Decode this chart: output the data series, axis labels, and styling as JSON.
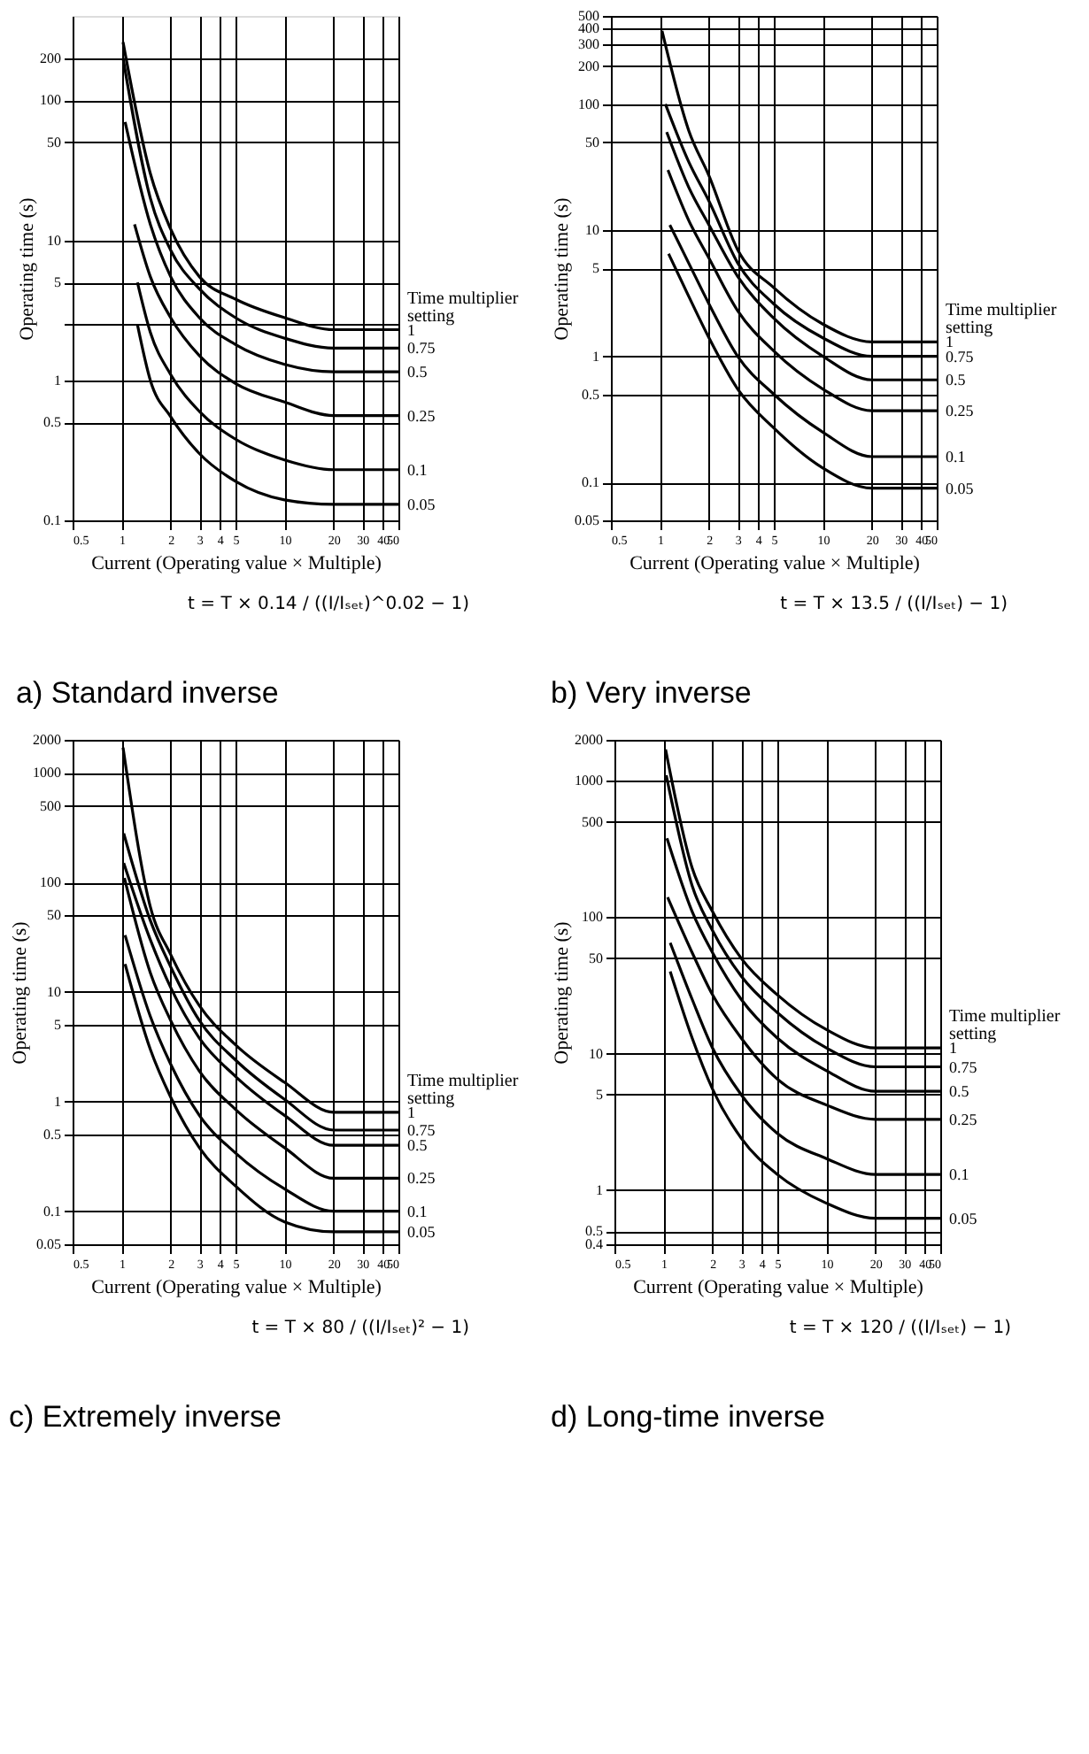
{
  "chart_data": [
    {
      "type": "line",
      "title": "a) Standard inverse",
      "xlabel": "Current (Operating value × Multiple)",
      "ylabel": "Operating time (s)",
      "legend_title": "Time multiplier setting",
      "annotations": [
        "t = T × 0.14 / ((I/Iₛₑₜ)^0.02 − 1)"
      ],
      "xlim": [
        0.5,
        50
      ],
      "ylim": [
        0.1,
        400
      ],
      "xticks": [
        0.5,
        1,
        2,
        3,
        4,
        5,
        10,
        20,
        30,
        40,
        50
      ],
      "yticks": [
        0.1,
        0.5,
        1,
        {
          "value": 2.5,
          "label": null
        },
        5,
        10,
        50,
        100,
        200
      ],
      "legend": "right",
      "log": "xy",
      "grid": true,
      "marker": "none",
      "line_style": "solid",
      "series": [
        {
          "name": "1",
          "color": "#000000",
          "x": [
            1.02,
            1.5,
            2,
            3,
            5,
            10,
            20,
            50
          ],
          "values": [
            260,
            30,
            12,
            5.5,
            3.8,
            2.8,
            2.3,
            2.3
          ]
        },
        {
          "name": "0.75",
          "color": "#000000",
          "x": [
            1.02,
            1.5,
            2,
            3,
            5,
            10,
            20,
            50
          ],
          "values": [
            200,
            20,
            8.5,
            4.5,
            2.8,
            2.0,
            1.7,
            1.7
          ]
        },
        {
          "name": "0.5",
          "color": "#000000",
          "x": [
            1.05,
            1.5,
            2,
            3,
            5,
            10,
            20,
            50
          ],
          "values": [
            70,
            13,
            5.5,
            2.8,
            1.8,
            1.3,
            1.15,
            1.15
          ]
        },
        {
          "name": "0.25",
          "color": "#000000",
          "x": [
            1.2,
            1.5,
            2,
            3,
            5,
            10,
            20,
            50
          ],
          "values": [
            13,
            5.5,
            2.8,
            1.5,
            0.95,
            0.7,
            0.56,
            0.56
          ]
        },
        {
          "name": "0.1",
          "color": "#000000",
          "x": [
            1.25,
            1.5,
            2,
            3,
            5,
            10,
            20,
            50
          ],
          "values": [
            5,
            2.2,
            1.1,
            0.6,
            0.38,
            0.27,
            0.23,
            0.23
          ]
        },
        {
          "name": "0.05",
          "color": "#000000",
          "x": [
            1.25,
            1.5,
            2,
            3,
            5,
            10,
            20,
            50
          ],
          "values": [
            2.5,
            1.0,
            0.55,
            0.3,
            0.19,
            0.14,
            0.13,
            0.13
          ]
        }
      ]
    },
    {
      "type": "line",
      "title": "b) Very inverse",
      "xlabel": "Current (Operating value × Multiple)",
      "ylabel": "Operating time (s)",
      "legend_title": "Time multiplier setting",
      "annotations": [
        "t = T × 13.5 / ((I/Iₛₑₜ) − 1)"
      ],
      "xlim": [
        0.5,
        50
      ],
      "ylim": [
        0.05,
        500
      ],
      "xticks": [
        0.5,
        1,
        2,
        3,
        4,
        5,
        10,
        20,
        30,
        40,
        50
      ],
      "yticks": [
        0.05,
        0.1,
        0.5,
        1,
        5,
        10,
        50,
        100,
        200,
        300,
        400,
        500
      ],
      "legend": "right",
      "log": "xy",
      "grid": true,
      "marker": "none",
      "line_style": "solid",
      "series": [
        {
          "name": "1",
          "color": "#000000",
          "x": [
            1.03,
            1.5,
            2,
            3,
            5,
            10,
            20,
            50
          ],
          "values": [
            380,
            62,
            27,
            7,
            3.5,
            1.8,
            1.3,
            1.3
          ]
        },
        {
          "name": "0.75",
          "color": "#000000",
          "x": [
            1.08,
            1.5,
            2,
            3,
            5,
            10,
            20,
            50
          ],
          "values": [
            100,
            35,
            17,
            5.5,
            2.6,
            1.4,
            1.0,
            1.0
          ]
        },
        {
          "name": "0.5",
          "color": "#000000",
          "x": [
            1.1,
            1.5,
            2,
            3,
            5,
            10,
            20,
            50
          ],
          "values": [
            60,
            22,
            11,
            4.3,
            2.0,
            1.0,
            0.65,
            0.65
          ]
        },
        {
          "name": "0.25",
          "color": "#000000",
          "x": [
            1.12,
            1.5,
            2,
            3,
            5,
            10,
            20,
            50
          ],
          "values": [
            30,
            12,
            6,
            2.3,
            1.1,
            0.55,
            0.37,
            0.37
          ]
        },
        {
          "name": "0.1",
          "color": "#000000",
          "x": [
            1.15,
            1.5,
            2,
            3,
            5,
            10,
            20,
            50
          ],
          "values": [
            11,
            5.5,
            2.6,
            1.0,
            0.5,
            0.25,
            0.16,
            0.16
          ]
        },
        {
          "name": "0.05",
          "color": "#000000",
          "x": [
            1.13,
            1.5,
            2,
            3,
            5,
            10,
            20,
            50
          ],
          "values": [
            6.5,
            3,
            1.4,
            0.55,
            0.27,
            0.13,
            0.09,
            0.09
          ]
        }
      ]
    },
    {
      "type": "line",
      "title": "c) Extremely inverse",
      "xlabel": "Current (Operating value × Multiple)",
      "ylabel": "Operating time (s)",
      "legend_title": "Time multiplier setting",
      "annotations": [
        "t = T × 80 / ((I/Iₛₑₜ)² − 1)"
      ],
      "xlim": [
        0.5,
        50
      ],
      "ylim": [
        0.05,
        2000
      ],
      "xticks": [
        0.5,
        1,
        2,
        3,
        4,
        5,
        10,
        20,
        30,
        40,
        50
      ],
      "yticks": [
        0.05,
        0.1,
        0.5,
        1,
        5,
        10,
        50,
        100,
        500,
        1000,
        2000
      ],
      "legend": "right",
      "log": "xy",
      "grid": true,
      "marker": "none",
      "line_style": "solid",
      "series": [
        {
          "name": "1",
          "color": "#000000",
          "x": [
            1.02,
            1.5,
            2,
            3,
            5,
            10,
            20,
            50
          ],
          "values": [
            1700,
            60,
            22,
            7.5,
            3.3,
            1.5,
            0.8,
            0.8
          ]
        },
        {
          "name": "0.75",
          "color": "#000000",
          "x": [
            1.03,
            1.5,
            2,
            3,
            5,
            10,
            20,
            50
          ],
          "values": [
            280,
            45,
            17,
            5.5,
            2.4,
            1.05,
            0.55,
            0.55
          ]
        },
        {
          "name": "0.5",
          "color": "#000000",
          "x": [
            1.03,
            1.5,
            2,
            3,
            5,
            10,
            20,
            50
          ],
          "values": [
            150,
            30,
            11,
            3.8,
            1.7,
            0.75,
            0.4,
            0.4
          ]
        },
        {
          "name": "0.25",
          "color": "#000000",
          "x": [
            1.04,
            1.5,
            2,
            3,
            5,
            10,
            20,
            50
          ],
          "values": [
            110,
            15,
            5.5,
            1.9,
            0.85,
            0.38,
            0.2,
            0.2
          ]
        },
        {
          "name": "0.1",
          "color": "#000000",
          "x": [
            1.05,
            1.5,
            2,
            3,
            5,
            10,
            20,
            50
          ],
          "values": [
            33,
            6,
            2.2,
            0.75,
            0.34,
            0.16,
            0.1,
            0.1
          ]
        },
        {
          "name": "0.05",
          "color": "#000000",
          "x": [
            1.05,
            1.5,
            2,
            3,
            5,
            10,
            20,
            50
          ],
          "values": [
            18,
            3,
            1.1,
            0.38,
            0.17,
            0.08,
            0.065,
            0.065
          ]
        }
      ]
    },
    {
      "type": "line",
      "title": "d) Long-time inverse",
      "xlabel": "Current (Operating value × Multiple)",
      "ylabel": "Operating time (s)",
      "legend_title": "Time multiplier setting",
      "annotations": [
        "t = T × 120 / ((I/Iₛₑₜ) − 1)"
      ],
      "xlim": [
        0.5,
        50
      ],
      "ylim": [
        0.4,
        2000
      ],
      "xticks": [
        0.5,
        1,
        2,
        3,
        4,
        5,
        10,
        20,
        30,
        40,
        50
      ],
      "yticks": [
        0.4,
        0.5,
        1,
        5,
        10,
        50,
        100,
        500,
        1000,
        2000
      ],
      "legend": "right",
      "log": "xy",
      "grid": true,
      "marker": "none",
      "line_style": "solid",
      "series": [
        {
          "name": "1",
          "color": "#000000",
          "x": [
            1.03,
            1.5,
            2,
            3,
            5,
            10,
            20,
            50
          ],
          "values": [
            1700,
            230,
            110,
            50,
            27,
            15,
            11,
            11
          ]
        },
        {
          "name": "0.75",
          "color": "#000000",
          "x": [
            1.04,
            1.5,
            2,
            3,
            5,
            10,
            20,
            50
          ],
          "values": [
            1100,
            170,
            80,
            37,
            20,
            11,
            8,
            8
          ]
        },
        {
          "name": "0.5",
          "color": "#000000",
          "x": [
            1.05,
            1.5,
            2,
            3,
            5,
            10,
            20,
            50
          ],
          "values": [
            380,
            110,
            55,
            25,
            13,
            7.5,
            5.3,
            5.3
          ]
        },
        {
          "name": "0.25",
          "color": "#000000",
          "x": [
            1.06,
            1.5,
            2,
            3,
            5,
            10,
            20,
            50
          ],
          "values": [
            140,
            55,
            27,
            13,
            6.5,
            4.2,
            3.3,
            3.3
          ]
        },
        {
          "name": "0.1",
          "color": "#000000",
          "x": [
            1.1,
            1.5,
            2,
            3,
            5,
            10,
            20,
            50
          ],
          "values": [
            65,
            25,
            11,
            5,
            2.6,
            1.7,
            1.3,
            1.3
          ]
        },
        {
          "name": "0.05",
          "color": "#000000",
          "x": [
            1.1,
            1.5,
            2,
            3,
            5,
            10,
            20,
            50
          ],
          "values": [
            40,
            13,
            5.5,
            2.4,
            1.3,
            0.8,
            0.62,
            0.62
          ]
        }
      ]
    }
  ]
}
